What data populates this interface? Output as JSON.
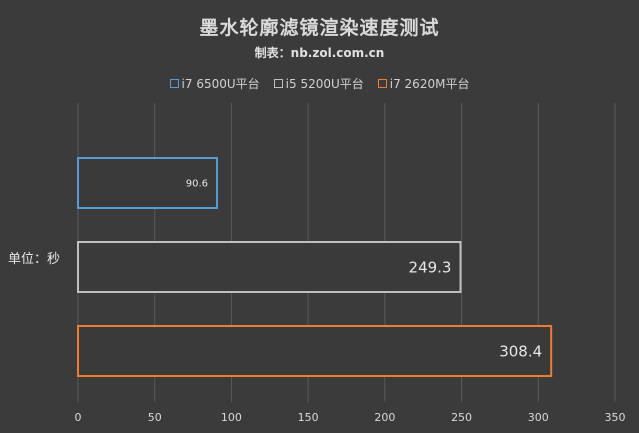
{
  "chart_data": {
    "type": "bar",
    "orientation": "horizontal",
    "title": "墨水轮廓滤镜渲染速度测试",
    "subtitle": "制表：nb.zol.com.cn",
    "unit_label": "单位：秒",
    "categories": [
      "i7 6500U平台",
      "i5 5200U平台",
      "i7 2620M平台"
    ],
    "values": [
      90.6,
      249.3,
      308.4
    ],
    "value_labels": [
      "90.6",
      "249.3",
      "308.4"
    ],
    "colors": [
      "#5b9bd5",
      "#bfbfbf",
      "#ed7d31"
    ],
    "xlim": [
      0,
      350
    ],
    "xticks": [
      0,
      50,
      100,
      150,
      200,
      250,
      300,
      350
    ],
    "grid": true,
    "legend_position": "top"
  }
}
